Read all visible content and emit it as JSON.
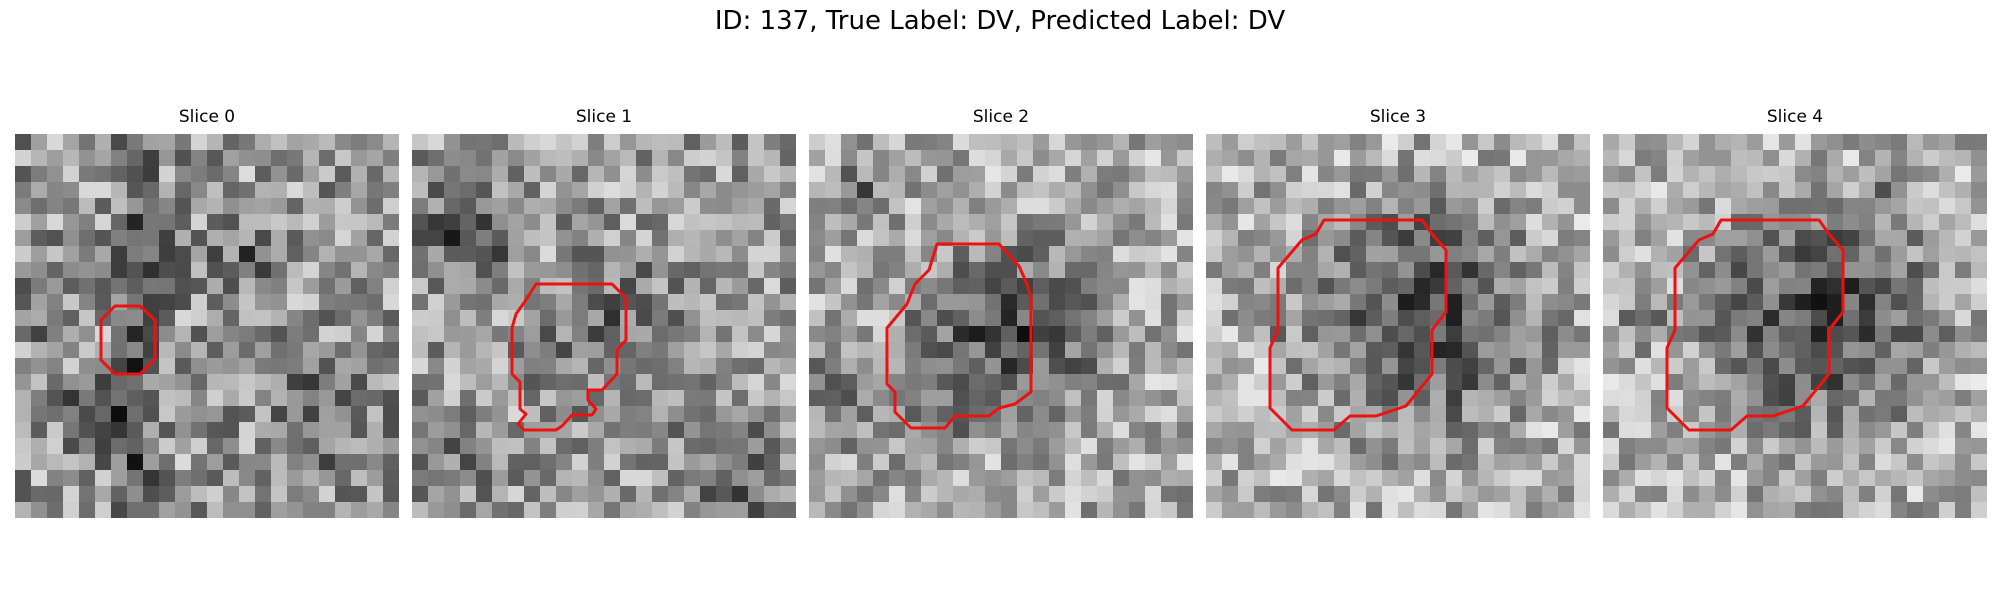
{
  "figure": {
    "title": "ID: 137, True Label: DV, Predicted Label: DV"
  },
  "slices": [
    {
      "title": "Slice 0"
    },
    {
      "title": "Slice 1"
    },
    {
      "title": "Slice 2"
    },
    {
      "title": "Slice 3"
    },
    {
      "title": "Slice 4"
    }
  ],
  "colors": {
    "contour": "#ee1111",
    "background": "#ffffff"
  },
  "colormap": "gray"
}
